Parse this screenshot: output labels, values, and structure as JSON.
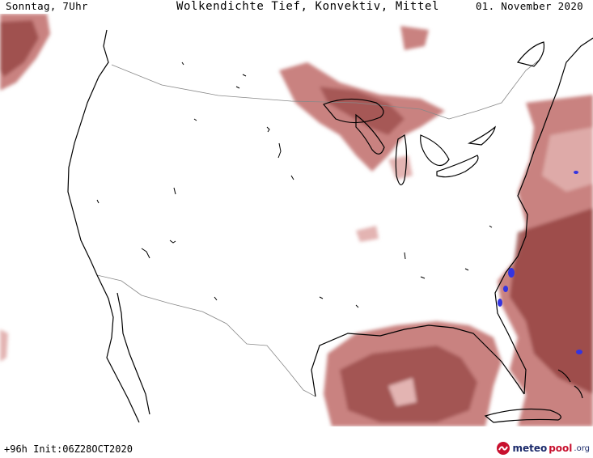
{
  "header": {
    "time_label": "Sonntag, 7Uhr",
    "title": "Wolkendichte  Tief, Konvektiv, Mittel",
    "date_label": "01. November 2020"
  },
  "footer": {
    "run_info": "+96h Init:06Z28OCT2020",
    "logo_meteo": "meteo",
    "logo_pool": "pool",
    "logo_org": ".org"
  },
  "colors": {
    "cloud_light": "#e3b4b2",
    "cloud_mid": "#c98280",
    "cloud_dark": "#8f3c3a",
    "convective": "#3434e0",
    "coastline": "#000000",
    "borders": "#888888"
  }
}
